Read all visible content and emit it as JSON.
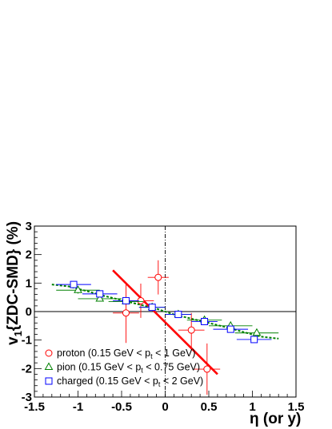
{
  "chart_data": {
    "type": "scatter",
    "xlabel": "η (or y)",
    "ylabel": "v1{ZDC-SMD} (%)",
    "xlim": [
      -1.5,
      1.5
    ],
    "ylim": [
      -3,
      3
    ],
    "x_ticks": [
      "-1.5",
      "-1",
      "-0.5",
      "0",
      "0.5",
      "1",
      "1.5"
    ],
    "y_ticks": [
      "-3",
      "-2",
      "-1",
      "0",
      "1",
      "2",
      "3"
    ],
    "reference_lines": [
      {
        "orientation": "horizontal",
        "value": 0,
        "style": "solid"
      },
      {
        "orientation": "vertical",
        "value": 0,
        "style": "dash-dot"
      }
    ],
    "series": [
      {
        "name": "proton (0.15 GeV < p_t < 1 GeV)",
        "marker": "circle-open",
        "color": "#ff0000",
        "points": [
          {
            "x": -0.45,
            "y": -0.05,
            "xerr": 0.15,
            "yerr": 1.05
          },
          {
            "x": -0.28,
            "y": 0.38,
            "xerr": 0.15,
            "yerr": 0.6
          },
          {
            "x": -0.08,
            "y": 1.2,
            "xerr": 0.12,
            "yerr": 0.6
          },
          {
            "x": 0.3,
            "y": -0.65,
            "xerr": 0.15,
            "yerr": 0.6
          },
          {
            "x": 0.48,
            "y": -2.02,
            "xerr": 0.15,
            "yerr": 0.9
          }
        ]
      },
      {
        "name": "pion (0.15 GeV < p_t < 0.75 GeV)",
        "marker": "triangle-open",
        "color": "#008000",
        "points": [
          {
            "x": -1.0,
            "y": 0.75,
            "xerr": 0.25,
            "yerr": 0.12
          },
          {
            "x": -0.75,
            "y": 0.45,
            "xerr": 0.25,
            "yerr": 0.1
          },
          {
            "x": -0.45,
            "y": 0.35,
            "xerr": 0.2,
            "yerr": 0.08
          },
          {
            "x": -0.15,
            "y": 0.15,
            "xerr": 0.15,
            "yerr": 0.06
          },
          {
            "x": 0.15,
            "y": -0.1,
            "xerr": 0.15,
            "yerr": 0.06
          },
          {
            "x": 0.45,
            "y": -0.3,
            "xerr": 0.2,
            "yerr": 0.08
          },
          {
            "x": 0.75,
            "y": -0.5,
            "xerr": 0.25,
            "yerr": 0.1
          },
          {
            "x": 1.05,
            "y": -0.75,
            "xerr": 0.25,
            "yerr": 0.12
          }
        ]
      },
      {
        "name": "charged (0.15 GeV < p_t < 2 GeV)",
        "marker": "square-open",
        "color": "#0000ff",
        "points": [
          {
            "x": -1.05,
            "y": 0.95,
            "xerr": 0.2,
            "yerr": 0.1
          },
          {
            "x": -0.75,
            "y": 0.62,
            "xerr": 0.2,
            "yerr": 0.08
          },
          {
            "x": -0.45,
            "y": 0.38,
            "xerr": 0.15,
            "yerr": 0.07
          },
          {
            "x": -0.15,
            "y": 0.15,
            "xerr": 0.15,
            "yerr": 0.06
          },
          {
            "x": 0.15,
            "y": -0.1,
            "xerr": 0.15,
            "yerr": 0.06
          },
          {
            "x": 0.45,
            "y": -0.35,
            "xerr": 0.15,
            "yerr": 0.07
          },
          {
            "x": 0.75,
            "y": -0.62,
            "xerr": 0.2,
            "yerr": 0.08
          },
          {
            "x": 1.02,
            "y": -0.98,
            "xerr": 0.2,
            "yerr": 0.1
          }
        ]
      }
    ],
    "fit_lines": [
      {
        "series": "proton",
        "color": "#ff0000",
        "style": "solid",
        "x": [
          -0.6,
          0.6
        ],
        "y": [
          1.45,
          -2.2
        ]
      },
      {
        "series": "pion",
        "color": "#008000",
        "style": "dashed",
        "x": [
          -1.3,
          -1.1,
          -0.9,
          -0.7,
          -0.5,
          -0.3,
          -0.1,
          0.1,
          0.3,
          0.5,
          0.7,
          0.9,
          1.1,
          1.3
        ],
        "y": [
          0.95,
          0.88,
          0.72,
          0.55,
          0.4,
          0.25,
          0.1,
          -0.1,
          -0.25,
          -0.4,
          -0.55,
          -0.72,
          -0.88,
          -0.95
        ]
      }
    ],
    "legend": {
      "placement": "bottom-left",
      "entries": [
        "proton (0.15 GeV < p_t < 1 GeV)",
        "pion (0.15 GeV < p_t < 0.75 GeV)",
        "charged (0.15 GeV < p_t < 2 GeV)"
      ]
    }
  }
}
